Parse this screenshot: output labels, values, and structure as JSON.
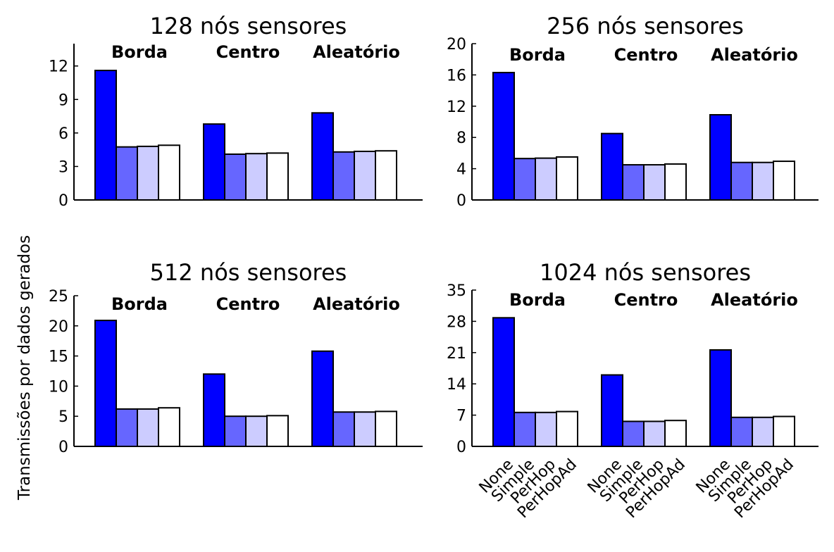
{
  "chart_data": {
    "type": "bar",
    "ylabel": "Transmissões por dados gerados",
    "groups": [
      "Borda",
      "Centro",
      "Aleatório"
    ],
    "series": [
      {
        "name": "None",
        "color": "#0000ff"
      },
      {
        "name": "Simple",
        "color": "#6666ff"
      },
      {
        "name": "PerHop",
        "color": "#ccccff"
      },
      {
        "name": "PerHopAd",
        "color": "#ffffff"
      }
    ],
    "panels": [
      {
        "title": "128 nós sensores",
        "ylim": [
          0,
          14
        ],
        "yticks": [
          0,
          3,
          6,
          9,
          12
        ],
        "values": [
          [
            11.6,
            4.75,
            4.8,
            4.9
          ],
          [
            6.8,
            4.1,
            4.15,
            4.2
          ],
          [
            7.8,
            4.3,
            4.35,
            4.4
          ]
        ]
      },
      {
        "title": "256 nós sensores",
        "ylim": [
          0,
          20
        ],
        "yticks": [
          0,
          4,
          8,
          12,
          16,
          20
        ],
        "values": [
          [
            16.3,
            5.3,
            5.35,
            5.5
          ],
          [
            8.5,
            4.5,
            4.5,
            4.6
          ],
          [
            10.9,
            4.8,
            4.8,
            4.95
          ]
        ]
      },
      {
        "title": "512 nós sensores",
        "ylim": [
          0,
          25
        ],
        "yticks": [
          0,
          5,
          10,
          15,
          20,
          25
        ],
        "values": [
          [
            20.9,
            6.2,
            6.2,
            6.4
          ],
          [
            12.0,
            5.0,
            5.0,
            5.1
          ],
          [
            15.8,
            5.7,
            5.7,
            5.8
          ]
        ]
      },
      {
        "title": "1024 nós sensores",
        "ylim": [
          0,
          35
        ],
        "yticks": [
          0,
          7,
          14,
          21,
          28,
          35
        ],
        "values": [
          [
            28.8,
            7.6,
            7.6,
            7.8
          ],
          [
            16.0,
            5.6,
            5.6,
            5.8
          ],
          [
            21.6,
            6.5,
            6.5,
            6.7
          ]
        ]
      }
    ]
  }
}
